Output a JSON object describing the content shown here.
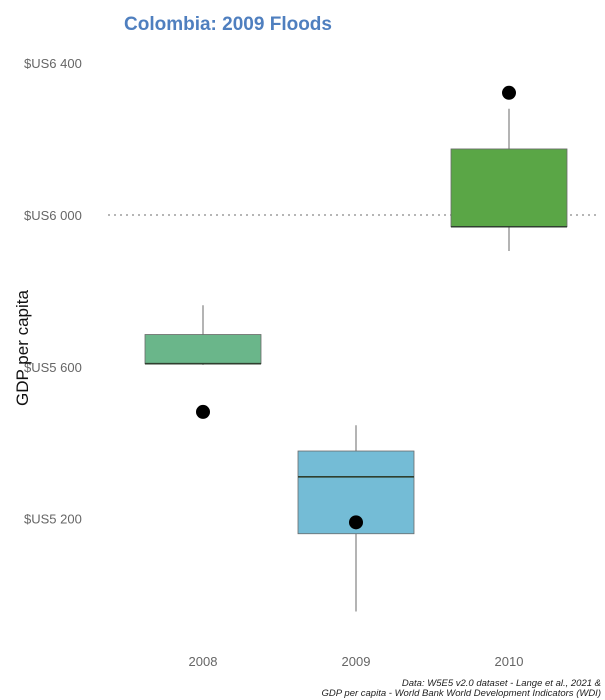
{
  "chart_data": {
    "type": "box",
    "title": "Colombia: 2009 Floods",
    "ylabel": "GDP per capita",
    "xlabel": "",
    "ylim": [
      4880,
      6440
    ],
    "yticks": [
      {
        "value": 5200,
        "label": "$US5 200"
      },
      {
        "value": 5600,
        "label": "$US5 600"
      },
      {
        "value": 6000,
        "label": "$US6 000"
      },
      {
        "value": 6400,
        "label": "$US6 400"
      }
    ],
    "reference_line": {
      "value": 6000,
      "style": "dotted"
    },
    "categories": [
      "2008",
      "2009",
      "2010"
    ],
    "boxes": [
      {
        "category": "2008",
        "whisker_low": 5605,
        "q1": 5608,
        "median": 5608,
        "q3": 5685,
        "whisker_high": 5762,
        "point": 5481,
        "color": "#6ab68a"
      },
      {
        "category": "2009",
        "whisker_low": 4955,
        "q1": 5160,
        "median": 5310,
        "q3": 5378,
        "whisker_high": 5446,
        "point": 5190,
        "color": "#74bcd6"
      },
      {
        "category": "2010",
        "whisker_low": 5905,
        "q1": 5969,
        "median": 5969,
        "q3": 6174,
        "whisker_high": 6280,
        "point": 6322,
        "color": "#5aa646"
      }
    ],
    "grid": false
  },
  "caption": {
    "line1": "Data: W5E5 v2.0 dataset - Lange et al., 2021 &",
    "line2": "GDP per capita - World Bank World Development Indicators (WDI)"
  }
}
